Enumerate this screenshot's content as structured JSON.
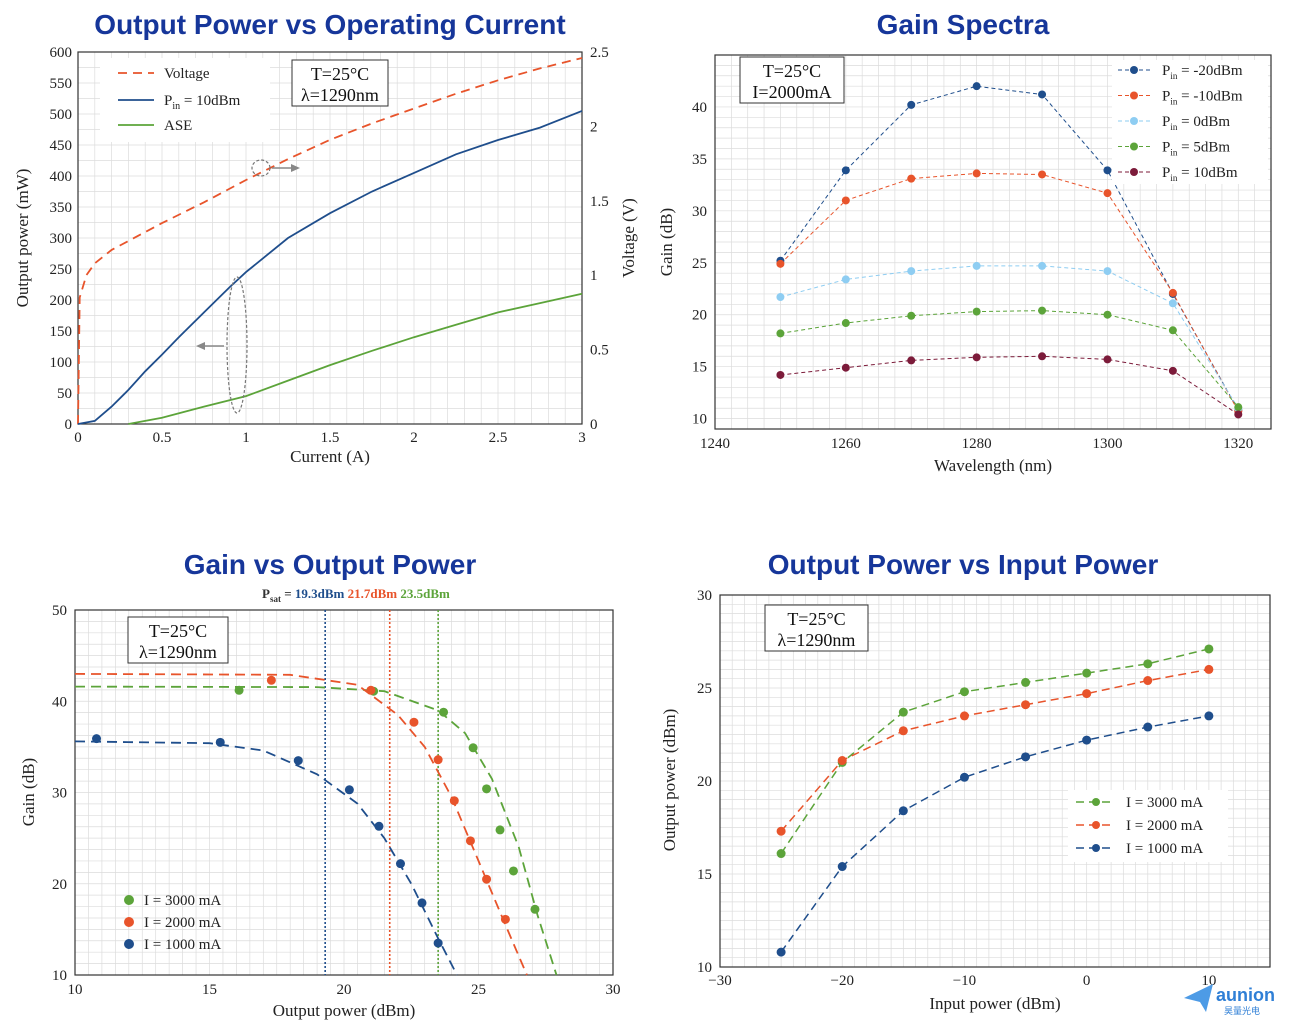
{
  "colors": {
    "blue": "#1f4e8c",
    "orange": "#e8542b",
    "green": "#5ca43a",
    "lightblue": "#8ecdf2",
    "maroon": "#7c1b3a",
    "title": "#16369a",
    "grid": "#dcdcdc"
  },
  "logo": {
    "name": "aunion",
    "sub": "昊量光电"
  },
  "chart_data": [
    {
      "type": "line",
      "title": "Output Power vs Operating Current",
      "xlabel": "Current (A)",
      "ylabel": "Output power (mW)",
      "y2label": "Voltage (V)",
      "xlim": [
        0,
        3
      ],
      "ylim": [
        0,
        600
      ],
      "y2lim": [
        0,
        2.5
      ],
      "xticks": [
        "0",
        "0.5",
        "1",
        "1.5",
        "2",
        "2.5",
        "3"
      ],
      "yticks": [
        "0",
        "50",
        "100",
        "150",
        "200",
        "250",
        "300",
        "350",
        "400",
        "450",
        "500",
        "550",
        "600"
      ],
      "y2ticks": [
        "0",
        "0.5",
        "1",
        "1.5",
        "2",
        "2.5"
      ],
      "annotation": [
        "T=25°C",
        "λ=1290nm"
      ],
      "legend_position": "top-left",
      "series": [
        {
          "name": "Voltage",
          "axis": "right",
          "color": "orange",
          "dash": true,
          "x": [
            0,
            0.01,
            0.05,
            0.1,
            0.2,
            0.3,
            0.5,
            0.75,
            1.0,
            1.25,
            1.5,
            1.75,
            2.0,
            2.25,
            2.5,
            2.75,
            3.0
          ],
          "y": [
            0,
            0.85,
            1.0,
            1.08,
            1.17,
            1.23,
            1.35,
            1.49,
            1.64,
            1.78,
            1.91,
            2.02,
            2.12,
            2.22,
            2.31,
            2.39,
            2.46
          ]
        },
        {
          "name": "P_in = 10dBm",
          "legend_main": "P",
          "legend_sub": "in",
          "legend_tail": " = 10dBm",
          "axis": "left",
          "color": "blue",
          "dash": false,
          "x": [
            0,
            0.1,
            0.2,
            0.3,
            0.4,
            0.5,
            0.6,
            0.75,
            0.9,
            1.0,
            1.25,
            1.5,
            1.75,
            2.0,
            2.25,
            2.5,
            2.75,
            3.0
          ],
          "y": [
            0,
            5,
            28,
            55,
            85,
            112,
            140,
            180,
            220,
            245,
            300,
            340,
            375,
            405,
            435,
            458,
            478,
            505
          ]
        },
        {
          "name": "ASE",
          "axis": "left",
          "color": "green",
          "dash": false,
          "x": [
            0.3,
            0.5,
            0.75,
            1.0,
            1.25,
            1.5,
            1.75,
            2.0,
            2.25,
            2.5,
            2.75,
            3.0
          ],
          "y": [
            0,
            10,
            28,
            45,
            70,
            95,
            118,
            140,
            160,
            180,
            195,
            210
          ]
        }
      ]
    },
    {
      "type": "line",
      "title": "Gain Spectra",
      "xlabel": "Wavelength (nm)",
      "ylabel": "Gain (dB)",
      "xlim": [
        1240,
        1325
      ],
      "ylim": [
        9,
        45
      ],
      "xticks": [
        "1240",
        "1260",
        "1280",
        "1300",
        "1320"
      ],
      "yticks": [
        "10",
        "15",
        "20",
        "25",
        "30",
        "35",
        "40"
      ],
      "annotation": [
        "T=25°C",
        "I=2000mA"
      ],
      "legend_position": "top-right",
      "x": [
        1250,
        1260,
        1270,
        1280,
        1290,
        1300,
        1310,
        1320
      ],
      "series": [
        {
          "name": "Pin = -20dBm",
          "legend_tail": " = -20dBm",
          "color": "blue",
          "values": [
            25.2,
            33.9,
            40.2,
            42.0,
            41.2,
            33.9,
            22.0,
            10.8
          ]
        },
        {
          "name": "Pin = -10dBm",
          "legend_tail": " = -10dBm",
          "color": "orange",
          "values": [
            24.9,
            31.0,
            33.1,
            33.6,
            33.5,
            31.7,
            22.1,
            10.7
          ]
        },
        {
          "name": "Pin = 0dBm",
          "legend_tail": " = 0dBm",
          "color": "lightblue",
          "values": [
            21.7,
            23.4,
            24.2,
            24.7,
            24.7,
            24.2,
            21.1,
            11.0
          ]
        },
        {
          "name": "Pin = 5dBm",
          "legend_tail": " = 5dBm",
          "color": "green",
          "values": [
            18.2,
            19.2,
            19.9,
            20.3,
            20.4,
            20.0,
            18.5,
            11.1
          ]
        },
        {
          "name": "Pin = 10dBm",
          "legend_tail": " = 10dBm",
          "color": "maroon",
          "values": [
            14.2,
            14.9,
            15.6,
            15.9,
            16.0,
            15.7,
            14.6,
            10.4
          ]
        }
      ]
    },
    {
      "type": "scatter",
      "title": "Gain vs Output Power",
      "xlabel": "Output power (dBm)",
      "ylabel": "Gain (dB)",
      "xlim": [
        10,
        30
      ],
      "ylim": [
        10,
        50
      ],
      "xticks": [
        "10",
        "15",
        "20",
        "25",
        "30"
      ],
      "yticks": [
        "10",
        "20",
        "30",
        "40",
        "50"
      ],
      "annotation": [
        "T=25°C",
        "λ=1290nm"
      ],
      "psat": {
        "label_main": "P",
        "label_sub": "sat",
        "label_eq": " = ",
        "values": [
          "19.3dBm",
          "21.7dBm",
          "23.5dBm"
        ],
        "x": [
          19.3,
          21.7,
          23.5
        ],
        "colors": [
          "blue",
          "orange",
          "green"
        ]
      },
      "legend_position": "bottom-left",
      "series": [
        {
          "name": "I = 3000 mA",
          "color": "green",
          "points": [
            [
              16.1,
              41.2
            ],
            [
              21.1,
              41.1
            ],
            [
              23.7,
              38.8
            ],
            [
              24.8,
              34.9
            ],
            [
              25.3,
              30.4
            ],
            [
              25.8,
              25.9
            ],
            [
              26.3,
              21.4
            ],
            [
              27.1,
              17.2
            ]
          ],
          "fit": [
            [
              10,
              41.6
            ],
            [
              19,
              41.55
            ],
            [
              21.5,
              41.1
            ],
            [
              23.5,
              39.0
            ],
            [
              24.5,
              36.5
            ],
            [
              25.5,
              31.5
            ],
            [
              26.5,
              24.0
            ],
            [
              27.2,
              16.5
            ],
            [
              27.9,
              10
            ]
          ]
        },
        {
          "name": "I = 2000 mA",
          "color": "orange",
          "points": [
            [
              17.3,
              42.3
            ],
            [
              21.0,
              41.2
            ],
            [
              22.6,
              37.7
            ],
            [
              23.5,
              33.6
            ],
            [
              24.1,
              29.1
            ],
            [
              24.7,
              24.7
            ],
            [
              25.3,
              20.5
            ],
            [
              26.0,
              16.1
            ]
          ],
          "fit": [
            [
              10,
              43.0
            ],
            [
              18,
              42.9
            ],
            [
              20.5,
              41.8
            ],
            [
              22,
              38.5
            ],
            [
              23,
              35.0
            ],
            [
              24,
              29.5
            ],
            [
              25,
              22.5
            ],
            [
              26,
              15.5
            ],
            [
              26.8,
              10
            ]
          ]
        },
        {
          "name": "I = 1000 mA",
          "color": "blue",
          "points": [
            [
              10.8,
              35.9
            ],
            [
              15.4,
              35.5
            ],
            [
              18.3,
              33.5
            ],
            [
              20.2,
              30.3
            ],
            [
              21.3,
              26.3
            ],
            [
              22.1,
              22.2
            ],
            [
              22.9,
              17.9
            ],
            [
              23.5,
              13.5
            ]
          ],
          "fit": [
            [
              10,
              35.6
            ],
            [
              15,
              35.4
            ],
            [
              17,
              34.6
            ],
            [
              19,
              32.0
            ],
            [
              20.5,
              28.8
            ],
            [
              21.5,
              25.0
            ],
            [
              22.5,
              20.0
            ],
            [
              23.5,
              14.0
            ],
            [
              24.2,
              10
            ]
          ]
        }
      ]
    },
    {
      "type": "line",
      "title": "Output Power vs Input Power",
      "xlabel": "Input power (dBm)",
      "ylabel": "Output power (dBm)",
      "xlim": [
        -30,
        15
      ],
      "ylim": [
        10,
        30
      ],
      "xticks": [
        "−30",
        "−20",
        "−10",
        "0",
        "10"
      ],
      "xtick_values": [
        -30,
        -20,
        -10,
        0,
        10
      ],
      "yticks": [
        "10",
        "15",
        "20",
        "25",
        "30"
      ],
      "annotation": [
        "T=25°C",
        "λ=1290nm"
      ],
      "legend_position": "right",
      "x": [
        -25,
        -20,
        -15,
        -10,
        -5,
        0,
        5,
        10
      ],
      "series": [
        {
          "name": "I = 3000 mA",
          "color": "green",
          "values": [
            16.1,
            21.0,
            23.7,
            24.8,
            25.3,
            25.8,
            26.3,
            27.1
          ]
        },
        {
          "name": "I = 2000 mA",
          "color": "orange",
          "values": [
            17.3,
            21.1,
            22.7,
            23.5,
            24.1,
            24.7,
            25.4,
            26.0
          ]
        },
        {
          "name": "I = 1000 mA",
          "color": "blue",
          "values": [
            10.8,
            15.4,
            18.4,
            20.2,
            21.3,
            22.2,
            22.9,
            23.5
          ]
        }
      ]
    }
  ]
}
